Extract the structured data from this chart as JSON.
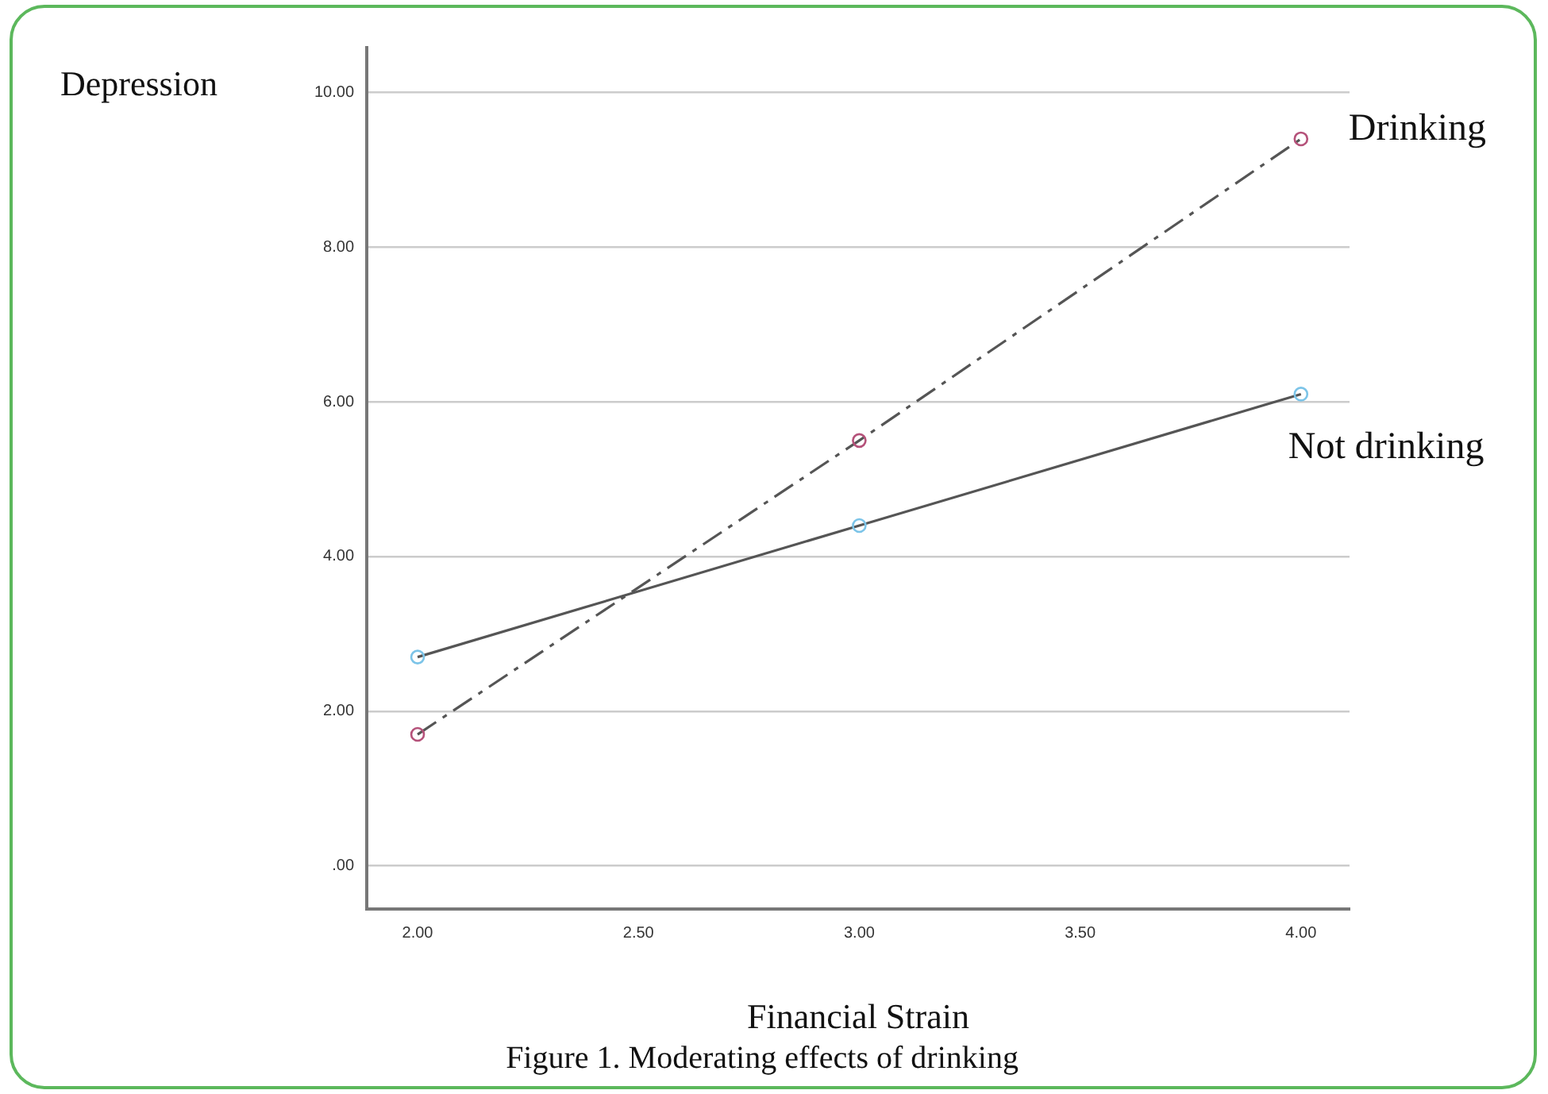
{
  "chart_data": {
    "type": "line",
    "xlabel": "Financial Strain",
    "ylabel": "Depression",
    "annotations": [
      "Figure 1. Moderating effects of drinking"
    ],
    "x": [
      2,
      3,
      4
    ],
    "series": [
      {
        "name": "Drinking",
        "color": "#b5527a",
        "values": [
          1.7,
          5.5,
          9.4
        ],
        "line_style": "dashed"
      },
      {
        "name": "Not drinking",
        "color": "#7cc4e8",
        "values": [
          2.7,
          4.4,
          6.1
        ],
        "line_style": "solid"
      }
    ],
    "xlim": [
      1.885,
      4.11
    ],
    "ylim": [
      -0.56,
      10.58
    ],
    "xticks": [
      {
        "value": 2,
        "label": "2.00"
      },
      {
        "value": 2.5,
        "label": "2.50"
      },
      {
        "value": 3,
        "label": "3.00"
      },
      {
        "value": 3.5,
        "label": "3.50"
      },
      {
        "value": 4,
        "label": "4.00"
      }
    ],
    "yticks": [
      {
        "value": 0,
        "label": ".00"
      },
      {
        "value": 2,
        "label": "2.00"
      },
      {
        "value": 4,
        "label": "4.00"
      },
      {
        "value": 6,
        "label": "6.00"
      },
      {
        "value": 8,
        "label": "8.00"
      },
      {
        "value": 10,
        "label": "10.00"
      }
    ],
    "grid": "y",
    "legend": false,
    "marker": "circle"
  }
}
